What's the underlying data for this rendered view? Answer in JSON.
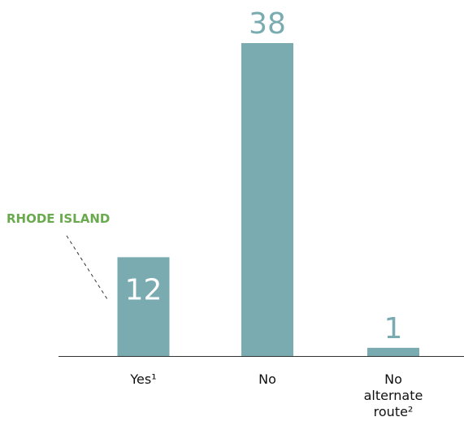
{
  "chart_data": {
    "type": "bar",
    "categories": [
      "Yes¹",
      "No",
      "No alternate route²"
    ],
    "values": [
      12,
      38,
      1
    ],
    "color": "#7aabb0",
    "annotation": "RHODE ISLAND",
    "annotation_color": "#6aaa4f"
  }
}
